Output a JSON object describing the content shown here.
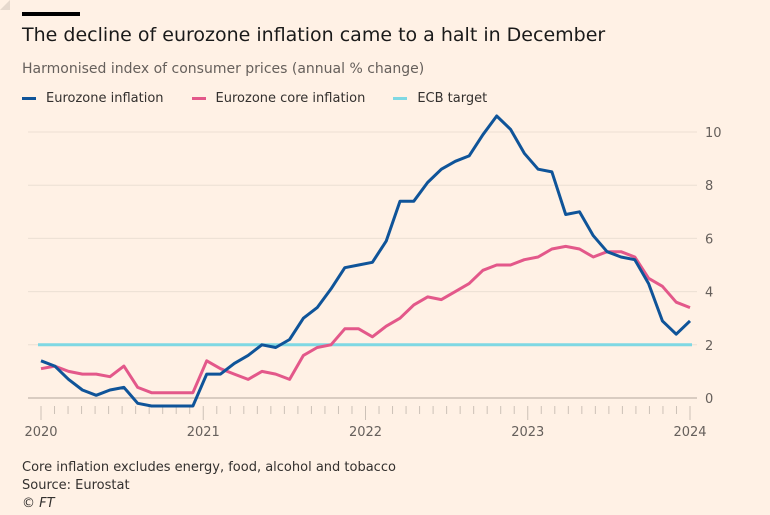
{
  "header": {
    "title": "The decline of eurozone inflation came to a halt in December",
    "subtitle": "Harmonised index of consumer prices (annual % change)"
  },
  "footer": {
    "note": "Core inflation excludes energy, food, alcohol and tobacco",
    "source": "Source: Eurostat",
    "credit": "© FT"
  },
  "colors": {
    "background": "#fff1e5",
    "headline": "#0f5499",
    "core": "#e3588a",
    "target": "#7fd8e3"
  },
  "chart_data": {
    "type": "line",
    "title": "The decline of eurozone inflation came to a halt in December",
    "subtitle": "Harmonised index of consumer prices (annual % change)",
    "x_ticks": [
      "2020",
      "2021",
      "2022",
      "2023",
      "2024"
    ],
    "y_ticks": [
      0,
      2,
      4,
      6,
      8,
      10
    ],
    "ylim": [
      -0.5,
      10.6
    ],
    "x_start": "2020-01",
    "frequency": "monthly",
    "grid": true,
    "legend": "top-left",
    "y_axis_side": "right",
    "series": [
      {
        "name": "Eurozone inflation",
        "color": "#0f5499",
        "values": [
          1.4,
          1.2,
          0.7,
          0.3,
          0.1,
          0.3,
          0.4,
          -0.2,
          -0.3,
          -0.3,
          -0.3,
          -0.3,
          0.9,
          0.9,
          1.3,
          1.6,
          2.0,
          1.9,
          2.2,
          3.0,
          3.4,
          4.1,
          4.9,
          5.0,
          5.1,
          5.9,
          7.4,
          7.4,
          8.1,
          8.6,
          8.9,
          9.1,
          9.9,
          10.6,
          10.1,
          9.2,
          8.6,
          8.5,
          6.9,
          7.0,
          6.1,
          5.5,
          5.3,
          5.2,
          4.3,
          2.9,
          2.4,
          2.9
        ]
      },
      {
        "name": "Eurozone core inflation",
        "color": "#e3588a",
        "values": [
          1.1,
          1.2,
          1.0,
          0.9,
          0.9,
          0.8,
          1.2,
          0.4,
          0.2,
          0.2,
          0.2,
          0.2,
          1.4,
          1.1,
          0.9,
          0.7,
          1.0,
          0.9,
          0.7,
          1.6,
          1.9,
          2.0,
          2.6,
          2.6,
          2.3,
          2.7,
          3.0,
          3.5,
          3.8,
          3.7,
          4.0,
          4.3,
          4.8,
          5.0,
          5.0,
          5.2,
          5.3,
          5.6,
          5.7,
          5.6,
          5.3,
          5.5,
          5.5,
          5.3,
          4.5,
          4.2,
          3.6,
          3.4
        ]
      },
      {
        "name": "ECB target",
        "color": "#7fd8e3",
        "constant": 2
      }
    ]
  }
}
